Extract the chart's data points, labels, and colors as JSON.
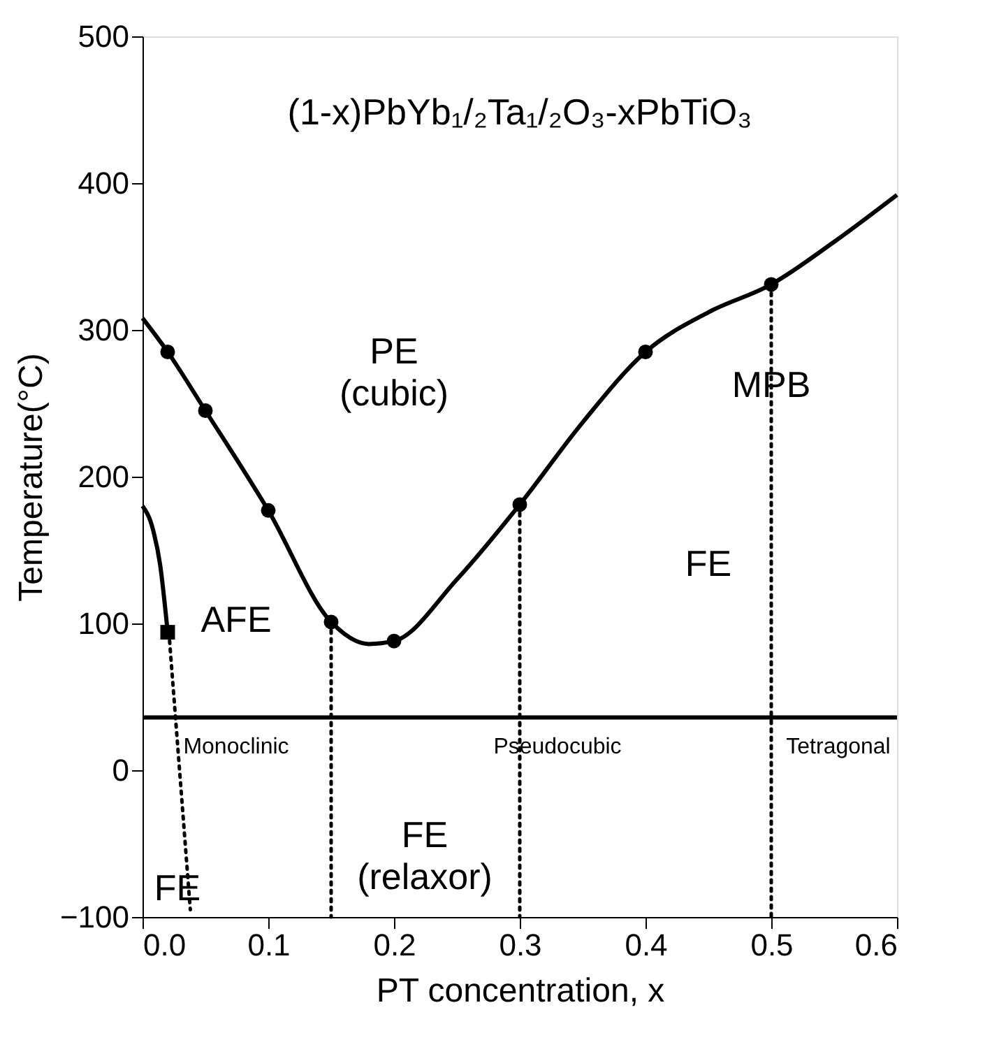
{
  "chart_data": {
    "type": "line",
    "xlabel": "PT concentration, x",
    "ylabel": "Temperature(°C)",
    "xlim": [
      0,
      0.6
    ],
    "ylim": [
      -100,
      500
    ],
    "xticks": [
      {
        "value": 0,
        "label": "0.0"
      },
      0.1,
      0.2,
      0.3,
      0.4,
      0.5,
      0.6
    ],
    "yticks": [
      -100,
      0,
      100,
      200,
      300,
      400,
      500
    ],
    "grid": false,
    "series": [
      {
        "color": "#000000",
        "line_style": "solid",
        "x": [
          0,
          0.02,
          0.05,
          0.1,
          0.15,
          0.18,
          0.2,
          0.25,
          0.3,
          0.35,
          0.4,
          0.45,
          0.5,
          0.55,
          0.6
        ],
        "values": [
          308,
          285,
          245,
          177,
          101,
          86,
          88,
          130,
          181,
          237,
          285,
          312,
          331,
          360,
          392
        ]
      },
      {
        "type": "scatter",
        "marker": "circle",
        "color": "#000000",
        "x": [
          0.02,
          0.05,
          0.1,
          0.15,
          0.2,
          0.3,
          0.4,
          0.5
        ],
        "values": [
          285,
          245,
          177,
          101,
          88,
          181,
          285,
          331
        ]
      },
      {
        "color": "#000000",
        "line_style": "solid",
        "x": [
          0,
          0.008,
          0.014,
          0.02
        ],
        "values": [
          180,
          165,
          140,
          94
        ]
      },
      {
        "type": "scatter",
        "marker": "square",
        "color": "#000000",
        "x": [
          0.02
        ],
        "values": [
          94
        ]
      },
      {
        "color": "#000000",
        "line_style": "dotted",
        "x": [
          0.021,
          0.038
        ],
        "values": [
          94,
          -95
        ]
      },
      {
        "color": "#000000",
        "line_style": "dotted",
        "x": [
          0.15,
          0.15
        ],
        "values": [
          101,
          -100
        ]
      },
      {
        "color": "#000000",
        "line_style": "dotted",
        "x": [
          0.3,
          0.3
        ],
        "values": [
          181,
          -100
        ]
      },
      {
        "color": "#000000",
        "line_style": "dotted",
        "x": [
          0.5,
          0.5
        ],
        "values": [
          331,
          -100
        ]
      },
      {
        "color": "#000000",
        "line_style": "solid",
        "x": [
          0,
          0.6
        ],
        "values": [
          36,
          36
        ]
      }
    ],
    "annotations": [
      "(1-x)PbYb₁/₂Ta₁/₂O₃-xPbTiO₃",
      "PE\n(cubic)",
      "AFE",
      "FE",
      "MPB",
      "Monoclinic",
      "Pseudocubic",
      "Tetragonal",
      "FE\n(relaxor)",
      "FE"
    ]
  }
}
